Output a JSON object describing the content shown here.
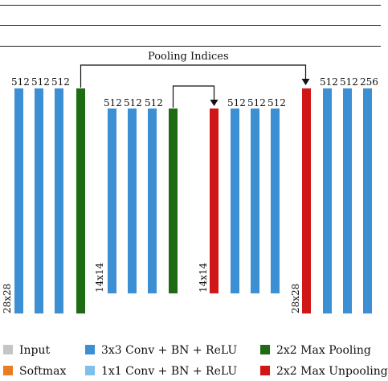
{
  "colors": {
    "input": "#c4c6c6",
    "softmax": "#e87d24",
    "conv3": "#3d8fd4",
    "conv1": "#7ec0ec",
    "maxpool": "#1f6b13",
    "unpool": "#d01616",
    "line": "#111111"
  },
  "pooling_indices_label": "Pooling Indices",
  "channel_labels": [
    "512",
    "512",
    "512",
    "512",
    "512",
    "512",
    "512",
    "512",
    "512",
    "512",
    "512",
    "256"
  ],
  "size_labels": [
    "28x28",
    "14x14",
    "14x14",
    "28x28"
  ],
  "legend": [
    {
      "label": "Input",
      "color_key": "input"
    },
    {
      "label": "3x3 Conv + BN + ReLU",
      "color_key": "conv3"
    },
    {
      "label": "2x2 Max Pooling",
      "color_key": "maxpool"
    },
    {
      "label": "Softmax",
      "color_key": "softmax"
    },
    {
      "label": "1x1 Conv + BN + ReLU",
      "color_key": "conv1"
    },
    {
      "label": "2x2 Max Unpooling",
      "color_key": "unpool"
    }
  ]
}
